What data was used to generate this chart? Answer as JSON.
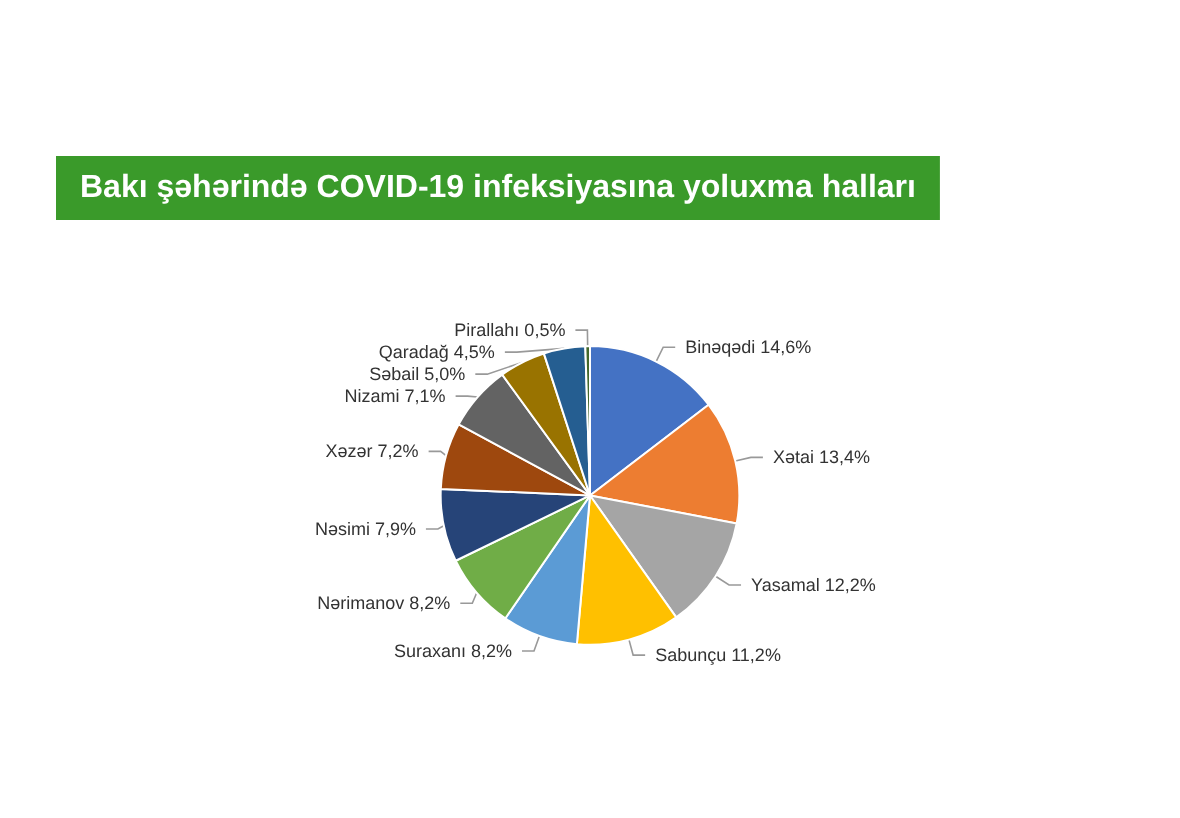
{
  "chart_data": {
    "type": "pie",
    "title": "Bakı şəhərində COVID-19 infeksiyasına yoluxma halları",
    "categories": [
      "Binəqədi",
      "Xətai",
      "Yasamal",
      "Sabunçu",
      "Suraxanı",
      "Nərimanov",
      "Nəsimi",
      "Xəzər",
      "Nizami",
      "Səbail",
      "Qaradağ",
      "Pirallahı"
    ],
    "values": [
      14.6,
      13.4,
      12.2,
      11.2,
      8.2,
      8.2,
      7.9,
      7.2,
      7.1,
      5.0,
      4.5,
      0.5
    ],
    "value_labels": [
      "14,6%",
      "13,4%",
      "12,2%",
      "11,2%",
      "8,2%",
      "8,2%",
      "7,9%",
      "7,2%",
      "7,1%",
      "5,0%",
      "4,5%",
      "0,5%"
    ],
    "colors": [
      "#4472c4",
      "#ed7d31",
      "#a5a5a5",
      "#ffc000",
      "#5b9bd5",
      "#70ad47",
      "#264478",
      "#9e480e",
      "#636363",
      "#997300",
      "#255e91",
      "#43682b"
    ],
    "legend": false
  }
}
